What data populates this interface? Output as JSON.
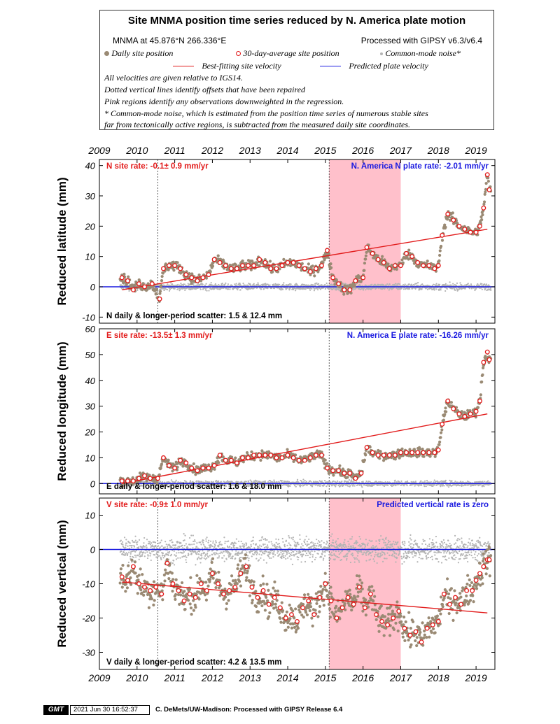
{
  "legend": {
    "title": "Site MNMA position time series reduced by N. America plate motion",
    "site_info": "MNMA at 45.876°N 266.336°E",
    "processing": "Processed with GIPSY v6.3/v6.4",
    "items": {
      "daily": "Daily site position",
      "avg30": "30-day-average site position",
      "cmn": "Common-mode noise*",
      "best_fit": "Best-fitting site velocity",
      "plate": "Predicted plate velocity"
    },
    "colors": {
      "daily": "#9a8a74",
      "avg_edge": "#e21b1b",
      "cmn": "#b4b4b4",
      "fit": "#e21b1b",
      "plate": "#1a1ae0",
      "pink": "#ffc0cb"
    },
    "notes": [
      "All velocities are given relative to IGS14.",
      "Dotted vertical lines identify offsets that have been repaired",
      "Pink regions identify any observations downweighted in the regression.",
      "* Common-mode noise, which is estimated from the position time series of numerous stable sites",
      "far from tectonically active regions, is subtracted from the measured daily site coordinates."
    ]
  },
  "footer": {
    "logo": "GMT",
    "date": "2021 Jun 30 16:52:37",
    "credit": "C. DeMets/UW-Madison: Processed with GIPSY Release 6.4"
  },
  "chart_data": [
    {
      "type": "scatter",
      "ylabel": "Reduced latitude (mm)",
      "xlim": [
        2009.0,
        2019.5
      ],
      "ylim": [
        -12,
        42
      ],
      "x_ticks": [
        2009,
        2010,
        2011,
        2012,
        2013,
        2014,
        2015,
        2016,
        2017,
        2018,
        2019
      ],
      "y_ticks": [
        -10,
        0,
        10,
        20,
        30,
        40
      ],
      "grid": false,
      "site_rate": "N site rate:  -0.1± 0.9 mm/yr",
      "plate_rate": "N. America N plate rate: -2.01 mm/yr",
      "scatter_text": "N daily & longer-period scatter:   1.5 &  12.4 mm",
      "pink_region": [
        2015.1,
        2017.0
      ],
      "offset_lines": [
        2010.55,
        2015.1
      ],
      "best_fit_line": {
        "x": [
          2009.6,
          2019.3
        ],
        "y": [
          -1.0,
          19.0
        ]
      },
      "plate_line": {
        "y": 0
      },
      "avg30": {
        "x": [
          2009.6,
          2009.75,
          2009.9,
          2010.05,
          2010.2,
          2010.4,
          2010.6,
          2010.7,
          2010.85,
          2011.0,
          2011.15,
          2011.3,
          2011.45,
          2011.6,
          2011.75,
          2011.9,
          2012.05,
          2012.2,
          2012.35,
          2012.5,
          2012.65,
          2012.8,
          2012.95,
          2013.1,
          2013.25,
          2013.4,
          2013.55,
          2013.7,
          2013.85,
          2014.0,
          2014.15,
          2014.3,
          2014.45,
          2014.6,
          2014.75,
          2014.9,
          2015.05,
          2015.2,
          2015.35,
          2015.5,
          2015.65,
          2015.8,
          2016.0,
          2016.1,
          2016.25,
          2016.4,
          2016.55,
          2016.7,
          2016.85,
          2017.0,
          2017.15,
          2017.3,
          2017.45,
          2017.6,
          2017.75,
          2017.9,
          2018.0,
          2018.1,
          2018.25,
          2018.4,
          2018.55,
          2018.7,
          2018.85,
          2019.0,
          2019.1,
          2019.2,
          2019.3,
          2019.35
        ],
        "y": [
          3,
          2,
          -1,
          1,
          0,
          1,
          -4,
          6,
          7,
          7,
          6,
          4,
          3,
          2,
          3,
          4,
          9,
          8,
          7,
          6,
          6,
          7,
          7,
          7,
          9,
          8,
          6,
          6,
          7,
          8,
          8,
          7,
          6,
          5,
          6,
          7,
          12,
          3,
          1,
          -1,
          -1,
          2,
          3,
          13,
          11,
          9,
          8,
          6,
          7,
          7,
          11,
          10,
          8,
          7,
          7,
          6,
          7,
          17,
          24,
          22,
          20,
          19,
          18,
          18,
          20,
          26,
          37,
          32
        ]
      },
      "daily_band": {
        "spread": 1.5
      }
    },
    {
      "type": "scatter",
      "ylabel": "Reduced longitude (mm)",
      "xlim": [
        2009.0,
        2019.5
      ],
      "ylim": [
        -4,
        60
      ],
      "x_ticks": [
        2009,
        2010,
        2011,
        2012,
        2013,
        2014,
        2015,
        2016,
        2017,
        2018,
        2019
      ],
      "y_ticks": [
        0,
        10,
        20,
        30,
        40,
        50,
        60
      ],
      "grid": false,
      "site_rate": "E site rate:  -13.5± 1.3 mm/yr",
      "plate_rate": "N. America E plate rate: -16.26 mm/yr",
      "scatter_text": "E daily & longer-period scatter:   1.6 &  18.0 mm",
      "pink_region": null,
      "offset_lines": [
        2015.1
      ],
      "best_fit_line": {
        "x": [
          2009.6,
          2019.3
        ],
        "y": [
          0.0,
          27.0
        ]
      },
      "plate_line": {
        "y": 0
      },
      "avg30": {
        "x": [
          2009.6,
          2009.75,
          2009.9,
          2010.05,
          2010.2,
          2010.35,
          2010.55,
          2010.7,
          2010.85,
          2011.0,
          2011.15,
          2011.3,
          2011.45,
          2011.6,
          2011.75,
          2011.9,
          2012.05,
          2012.2,
          2012.35,
          2012.5,
          2012.65,
          2012.8,
          2012.95,
          2013.1,
          2013.25,
          2013.4,
          2013.55,
          2013.7,
          2013.85,
          2014.0,
          2014.15,
          2014.3,
          2014.45,
          2014.6,
          2014.75,
          2014.9,
          2015.05,
          2015.2,
          2015.35,
          2015.5,
          2015.65,
          2015.8,
          2015.95,
          2016.1,
          2016.25,
          2016.4,
          2016.55,
          2016.7,
          2016.85,
          2017.0,
          2017.15,
          2017.3,
          2017.45,
          2017.6,
          2017.75,
          2017.9,
          2018.0,
          2018.1,
          2018.25,
          2018.4,
          2018.55,
          2018.7,
          2018.85,
          2019.0,
          2019.1,
          2019.2,
          2019.3,
          2019.35
        ],
        "y": [
          1,
          1,
          1,
          2,
          3,
          2,
          2,
          10,
          7,
          6,
          9,
          8,
          6,
          5,
          6,
          6,
          7,
          11,
          9,
          9,
          8,
          10,
          10,
          11,
          11,
          11,
          11,
          10,
          10,
          11,
          10,
          9,
          9,
          10,
          11,
          11,
          6,
          5,
          5,
          4,
          4,
          2,
          4,
          14,
          12,
          11,
          11,
          11,
          11,
          12,
          12,
          12,
          12,
          12,
          12,
          12,
          13,
          23,
          32,
          29,
          27,
          26,
          27,
          28,
          32,
          47,
          51,
          48
        ]
      },
      "daily_band": {
        "spread": 1.6
      }
    },
    {
      "type": "scatter",
      "ylabel": "Reduced vertical (mm)",
      "xlim": [
        2009.0,
        2019.5
      ],
      "ylim": [
        -35,
        15
      ],
      "x_ticks": [
        2009,
        2010,
        2011,
        2012,
        2013,
        2014,
        2015,
        2016,
        2017,
        2018,
        2019
      ],
      "y_ticks": [
        -30,
        -20,
        -10,
        0,
        10
      ],
      "grid": false,
      "site_rate": "V site rate:  -0.9± 1.0 mm/yr",
      "plate_rate": "Predicted vertical rate is zero",
      "scatter_text": "V daily & longer-period scatter:   4.2 &  13.5 mm",
      "pink_region": [
        2015.1,
        2017.0
      ],
      "offset_lines": [
        2010.55,
        2015.1
      ],
      "best_fit_line": {
        "x": [
          2009.6,
          2019.3
        ],
        "y": [
          -9.5,
          -18.5
        ]
      },
      "plate_line": {
        "y": 0
      },
      "avg30": {
        "x": [
          2009.6,
          2009.75,
          2009.9,
          2010.05,
          2010.2,
          2010.35,
          2010.5,
          2010.65,
          2010.8,
          2010.95,
          2011.1,
          2011.25,
          2011.4,
          2011.55,
          2011.7,
          2011.85,
          2012.0,
          2012.15,
          2012.3,
          2012.45,
          2012.6,
          2012.75,
          2012.9,
          2013.05,
          2013.2,
          2013.35,
          2013.5,
          2013.65,
          2013.8,
          2013.95,
          2014.1,
          2014.25,
          2014.4,
          2014.55,
          2014.7,
          2014.85,
          2015.0,
          2015.15,
          2015.3,
          2015.45,
          2015.6,
          2015.75,
          2015.9,
          2016.05,
          2016.2,
          2016.35,
          2016.5,
          2016.65,
          2016.8,
          2016.95,
          2017.1,
          2017.25,
          2017.4,
          2017.55,
          2017.7,
          2017.85,
          2018.0,
          2018.15,
          2018.3,
          2018.45,
          2018.6,
          2018.75,
          2018.9,
          2019.0,
          2019.1,
          2019.2,
          2019.3,
          2019.35
        ],
        "y": [
          -8,
          -9,
          -5,
          -10,
          -11,
          -12,
          -11,
          -13,
          -4,
          -10,
          -12,
          -15,
          -13,
          -14,
          -10,
          -12,
          -7,
          -10,
          -13,
          -12,
          -11,
          -7,
          -5,
          -11,
          -14,
          -12,
          -16,
          -14,
          -17,
          -20,
          -19,
          -21,
          -17,
          -15,
          -19,
          -14,
          -10,
          -15,
          -20,
          -17,
          -14,
          -16,
          -11,
          -17,
          -13,
          -19,
          -21,
          -22,
          -20,
          -18,
          -23,
          -25,
          -24,
          -27,
          -23,
          -22,
          -21,
          -13,
          -16,
          -14,
          -16,
          -12,
          -12,
          -9,
          -7,
          -5,
          -3,
          -3
        ]
      },
      "daily_band": {
        "spread": 4.2
      }
    }
  ]
}
